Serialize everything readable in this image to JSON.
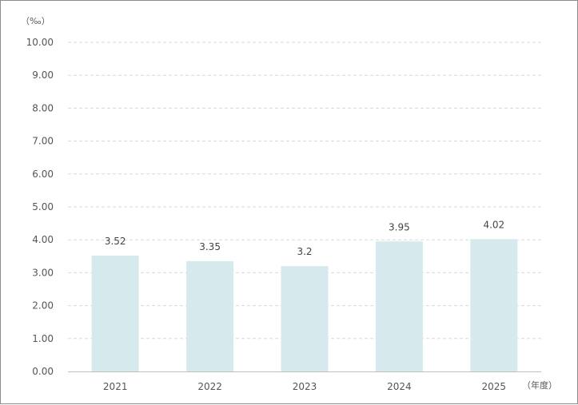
{
  "chart_data": {
    "type": "bar",
    "categories": [
      "2021",
      "2022",
      "2023",
      "2024",
      "2025"
    ],
    "values": [
      3.52,
      3.35,
      3.2,
      3.95,
      4.02
    ],
    "data_labels": [
      "3.52",
      "3.35",
      "3.2",
      "3.95",
      "4.02"
    ],
    "y_ticks": [
      "0.00",
      "1.00",
      "2.00",
      "3.00",
      "4.00",
      "5.00",
      "6.00",
      "7.00",
      "8.00",
      "9.00",
      "10.00"
    ],
    "ylim": [
      0,
      10
    ],
    "y_unit": "（‰）",
    "x_unit": "（年度）",
    "grid": true,
    "bar_color": "#d6e9ec",
    "grid_color": "#d9d9d9",
    "axis_color": "#bfbfbf"
  }
}
